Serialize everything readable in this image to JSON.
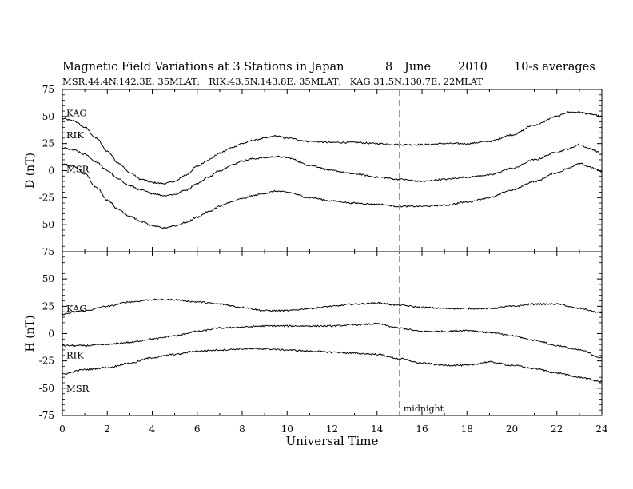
{
  "header": {
    "title": "Magnetic Field Variations at 3 Stations in Japan",
    "day": "8",
    "month": "June",
    "year": "2010",
    "resolution": "10-s averages",
    "stations_line": "MSR:44.4N,142.3E, 35MLAT;   RIK:43.5N,143.8E, 35MLAT;   KAG:31.5N,130.7E, 22MLAT"
  },
  "chart_data": {
    "type": "line",
    "xlabel": "Universal Time",
    "xlim": [
      0,
      24
    ],
    "xticks": [
      0,
      2,
      4,
      6,
      8,
      10,
      12,
      14,
      16,
      18,
      20,
      22,
      24
    ],
    "midnight": {
      "x": 15,
      "label": "midnight",
      "style": "dashed",
      "color": "#999999"
    },
    "line_color": "#000000",
    "panels": [
      {
        "ylabel": "D (nT)",
        "ylim": [
          -75,
          75
        ],
        "yticks": [
          75,
          50,
          25,
          0,
          -25,
          -50,
          -75
        ],
        "series": [
          {
            "name": "KAG",
            "x": [
              0,
              0.5,
              1,
              1.5,
              2,
              2.5,
              3,
              3.5,
              4,
              4.5,
              5,
              5.5,
              6,
              6.5,
              7,
              7.5,
              8,
              8.5,
              9,
              9.5,
              10,
              11,
              12,
              13,
              14,
              15,
              16,
              17,
              18,
              19,
              20,
              21,
              22,
              22.5,
              23,
              23.5,
              24
            ],
            "values": [
              48,
              46,
              40,
              30,
              18,
              7,
              -2,
              -8,
              -11,
              -12,
              -10,
              -4,
              4,
              10,
              16,
              21,
              25,
              28,
              30,
              32,
              30,
              27,
              26,
              26,
              25,
              24,
              24,
              25,
              25,
              27,
              33,
              42,
              50,
              54,
              54,
              52,
              50
            ]
          },
          {
            "name": "RIK",
            "x": [
              0,
              0.5,
              1,
              1.5,
              2,
              2.5,
              3,
              3.5,
              4,
              4.5,
              5,
              5.5,
              6,
              6.5,
              7,
              7.5,
              8,
              8.5,
              9,
              9.5,
              10,
              11,
              12,
              13,
              14,
              15,
              16,
              17,
              18,
              19,
              20,
              21,
              22,
              22.5,
              23,
              23.5,
              24
            ],
            "values": [
              21,
              19,
              15,
              8,
              0,
              -8,
              -14,
              -18,
              -21,
              -23,
              -22,
              -18,
              -12,
              -6,
              0,
              5,
              9,
              11,
              12,
              13,
              12,
              5,
              0,
              -3,
              -6,
              -8,
              -10,
              -8,
              -6,
              -4,
              2,
              10,
              17,
              20,
              24,
              20,
              16
            ]
          },
          {
            "name": "MSR",
            "x": [
              0,
              0.5,
              1,
              1.5,
              2,
              2.5,
              3,
              3.5,
              4,
              4.5,
              5,
              5.5,
              6,
              6.5,
              7,
              7.5,
              8,
              8.5,
              9,
              9.5,
              10,
              11,
              12,
              13,
              14,
              15,
              16,
              17,
              18,
              19,
              20,
              21,
              22,
              22.5,
              23,
              23.5,
              24
            ],
            "values": [
              6,
              4,
              -3,
              -15,
              -27,
              -36,
              -42,
              -47,
              -51,
              -53,
              -51,
              -48,
              -43,
              -38,
              -33,
              -29,
              -26,
              -23,
              -21,
              -19,
              -20,
              -25,
              -28,
              -30,
              -31,
              -33,
              -33,
              -32,
              -29,
              -25,
              -18,
              -10,
              -2,
              2,
              7,
              3,
              -1
            ]
          }
        ]
      },
      {
        "ylabel": "H (nT)",
        "ylim": [
          -75,
          75
        ],
        "yticks": [
          75,
          50,
          25,
          0,
          -25,
          -50,
          -75
        ],
        "series": [
          {
            "name": "KAG",
            "x": [
              0,
              1,
              2,
              3,
              4,
              5,
              6,
              7,
              8,
              9,
              10,
              11,
              12,
              13,
              14,
              15,
              16,
              17,
              18,
              19,
              20,
              21,
              22,
              23,
              24
            ],
            "values": [
              18,
              21,
              25,
              29,
              31,
              31,
              29,
              27,
              24,
              21,
              21,
              23,
              25,
              27,
              28,
              26,
              24,
              23,
              23,
              23,
              25,
              27,
              27,
              23,
              19
            ]
          },
          {
            "name": "RIK",
            "x": [
              0,
              1,
              2,
              3,
              4,
              5,
              6,
              7,
              8,
              9,
              10,
              11,
              12,
              13,
              14,
              15,
              16,
              17,
              18,
              19,
              20,
              21,
              22,
              23,
              24
            ],
            "values": [
              -11,
              -11,
              -10,
              -8,
              -5,
              -2,
              2,
              5,
              6,
              7,
              7,
              7,
              7,
              8,
              9,
              5,
              2,
              2,
              3,
              1,
              -2,
              -6,
              -11,
              -15,
              -22
            ]
          },
          {
            "name": "MSR",
            "x": [
              0,
              1,
              2,
              3,
              4,
              5,
              6,
              7,
              8,
              9,
              10,
              11,
              12,
              13,
              14,
              15,
              16,
              17,
              18,
              19,
              20,
              21,
              22,
              23,
              24
            ],
            "values": [
              -37,
              -33,
              -31,
              -27,
              -22,
              -19,
              -16,
              -15,
              -14,
              -14,
              -15,
              -16,
              -17,
              -18,
              -19,
              -23,
              -27,
              -29,
              -29,
              -26,
              -29,
              -32,
              -36,
              -40,
              -44
            ]
          }
        ]
      }
    ]
  }
}
